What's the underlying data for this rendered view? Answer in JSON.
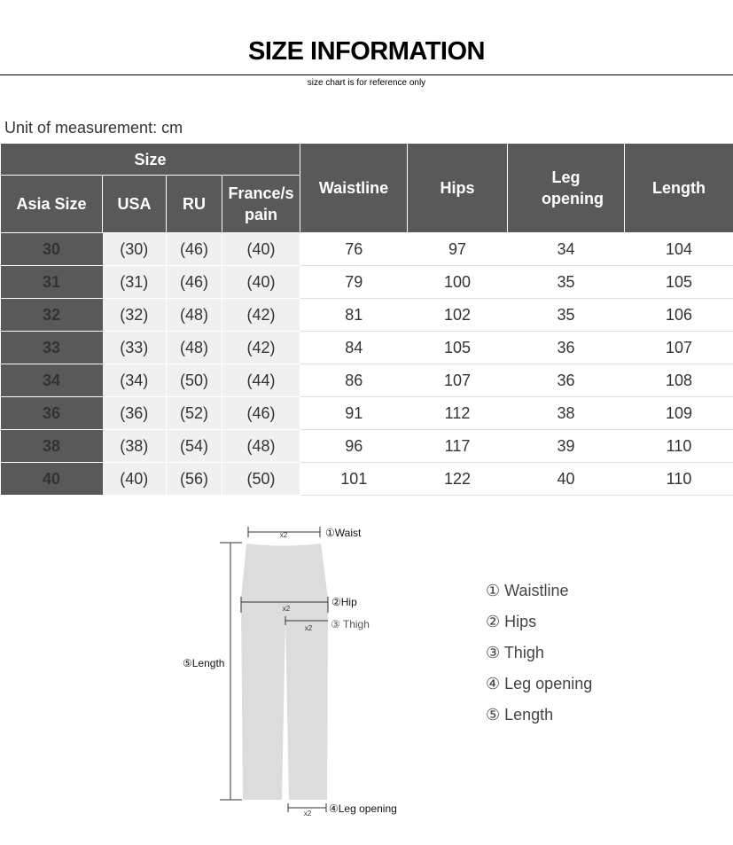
{
  "title": "SIZE INFORMATION",
  "subtitle": "size chart is for reference only",
  "unit_label": "Unit of measurement: cm",
  "table": {
    "group_header": "Size",
    "headers": [
      "Asia Size",
      "USA",
      "RU",
      "France/s pain",
      "Waistline",
      "Hips",
      "Leg opening",
      "Length"
    ],
    "rows": [
      [
        "30",
        "(30)",
        "(46)",
        "(40)",
        "76",
        "97",
        "34",
        "104"
      ],
      [
        "31",
        "(31)",
        "(46)",
        "(40)",
        "79",
        "100",
        "35",
        "105"
      ],
      [
        "32",
        "(32)",
        "(48)",
        "(42)",
        "81",
        "102",
        "35",
        "106"
      ],
      [
        "33",
        "(33)",
        "(48)",
        "(42)",
        "84",
        "105",
        "36",
        "107"
      ],
      [
        "34",
        "(34)",
        "(50)",
        "(44)",
        "86",
        "107",
        "36",
        "108"
      ],
      [
        "36",
        "(36)",
        "(52)",
        "(46)",
        "91",
        "112",
        "38",
        "109"
      ],
      [
        "38",
        "(38)",
        "(54)",
        "(48)",
        "96",
        "117",
        "39",
        "110"
      ],
      [
        "40",
        "(40)",
        "(56)",
        "(50)",
        "101",
        "122",
        "40",
        "110"
      ]
    ]
  },
  "diagram": {
    "multiplier": "x2",
    "labels": [
      "①Waist",
      "②Hip",
      "③ Thigh",
      "④Leg opening",
      "⑤Length"
    ]
  },
  "legend": [
    "① Waistline",
    "② Hips",
    "③ Thigh",
    "④ Leg opening",
    "⑤ Length"
  ],
  "colors": {
    "header_bg": "#595959",
    "alt_bg": "#f0f0f0",
    "garment": "#dcdcdc"
  }
}
